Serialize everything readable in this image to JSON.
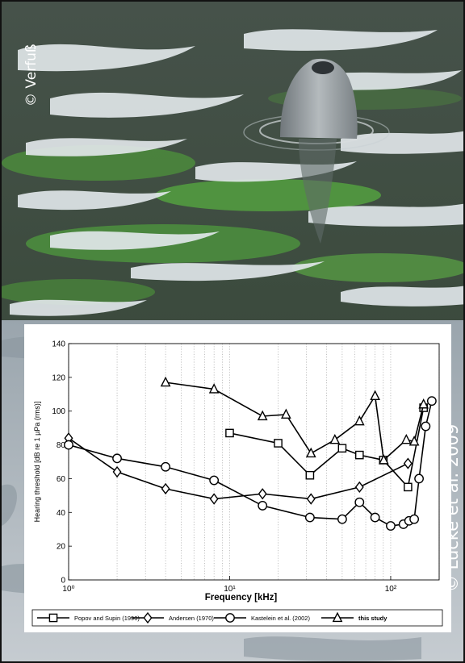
{
  "credits": {
    "top_left": "© Verfuß",
    "right": "© Lucke et al. 2009"
  },
  "colors": {
    "water_dark": "#3b4a3c",
    "water_green": "#4f9a3d",
    "water_highlight": "#dfe6ea",
    "dolphin": "#9aa0a3",
    "lower_water": "#b8c0c6"
  },
  "chart_data": {
    "type": "line",
    "xlabel": "Frequency [kHz]",
    "ylabel": "Hearing threshold [dB re 1 µPa (rms)]",
    "xscale": "log",
    "xlim": [
      1,
      200
    ],
    "ylim": [
      0,
      140
    ],
    "x_ticks": [
      1,
      10,
      100
    ],
    "x_tick_labels": [
      "10⁰",
      "10¹",
      "10²"
    ],
    "y_ticks": [
      0,
      20,
      40,
      60,
      80,
      100,
      120,
      140
    ],
    "grid": "x-only dotted",
    "legend_position": "bottom",
    "series": [
      {
        "name": "Popov and Supin (1990)",
        "marker": "square",
        "x": [
          10,
          20,
          31.5,
          50,
          64,
          90,
          128,
          160
        ],
        "y": [
          87,
          81,
          62,
          78,
          74,
          71,
          55,
          102
        ]
      },
      {
        "name": "Andersen (1970)",
        "marker": "diamond",
        "x": [
          1,
          2,
          4,
          8,
          16,
          32,
          64,
          128
        ],
        "y": [
          84,
          64,
          54,
          48,
          51,
          48,
          55,
          69
        ]
      },
      {
        "name": "Kastelein et al. (2002)",
        "marker": "circle",
        "x": [
          1,
          2,
          4,
          8,
          16,
          31.5,
          50,
          64,
          80,
          100,
          120,
          130,
          140,
          150,
          165,
          180
        ],
        "y": [
          80,
          72,
          67,
          59,
          44,
          37,
          36,
          46,
          37,
          32,
          33,
          35,
          36,
          60,
          91,
          106
        ]
      },
      {
        "name": "this study",
        "marker": "triangle",
        "x": [
          4,
          8,
          16,
          22.4,
          32,
          45,
          64,
          80,
          90.5,
          125,
          140,
          160
        ],
        "y": [
          117,
          113,
          97,
          98,
          75,
          83,
          94,
          109,
          71,
          83,
          82,
          104
        ]
      }
    ]
  }
}
